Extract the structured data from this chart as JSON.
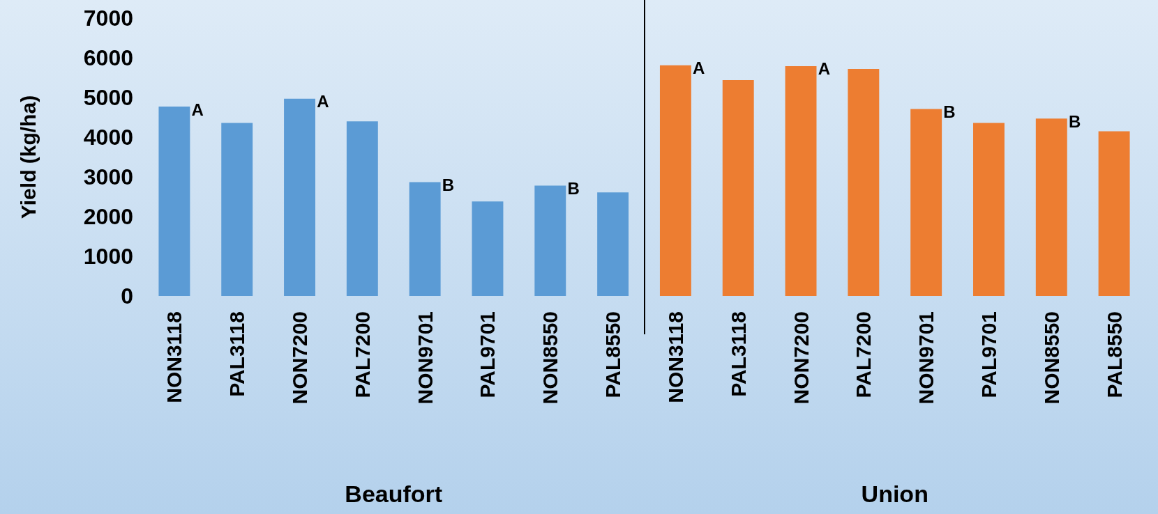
{
  "chart_data": {
    "type": "bar",
    "ylabel": "Yield (kg/ha)",
    "categories": [
      "NON3118",
      "PAL3118",
      "NON7200",
      "PAL7200",
      "NON9701",
      "PAL9701",
      "NON8550",
      "PAL8550",
      "NON3118",
      "PAL3118",
      "NON7200",
      "PAL7200",
      "NON9701",
      "PAL9701",
      "NON8550",
      "PAL8550"
    ],
    "series": [
      {
        "color": "#5b9bd5",
        "values": [
          4770,
          4360,
          4970,
          4400,
          2870,
          2380,
          2780,
          2610,
          null,
          null,
          null,
          null,
          null,
          null,
          null,
          null
        ],
        "value_labels": [
          "A",
          null,
          "A",
          null,
          "B",
          null,
          "B",
          null,
          null,
          null,
          null,
          null,
          null,
          null,
          null,
          null
        ]
      },
      {
        "color": "#ed7d31",
        "values": [
          null,
          null,
          null,
          null,
          null,
          null,
          null,
          null,
          5810,
          5440,
          5790,
          5720,
          4710,
          4360,
          4470,
          4150
        ],
        "value_labels": [
          null,
          null,
          null,
          null,
          null,
          null,
          null,
          null,
          "A",
          null,
          "A",
          null,
          "B",
          null,
          "B",
          null
        ]
      }
    ],
    "ylim": [
      0,
      7000
    ],
    "yticks": [
      0,
      1000,
      2000,
      3000,
      4000,
      5000,
      6000,
      7000
    ],
    "grid": false,
    "annotations": [
      "Beaufort",
      "Union"
    ]
  }
}
